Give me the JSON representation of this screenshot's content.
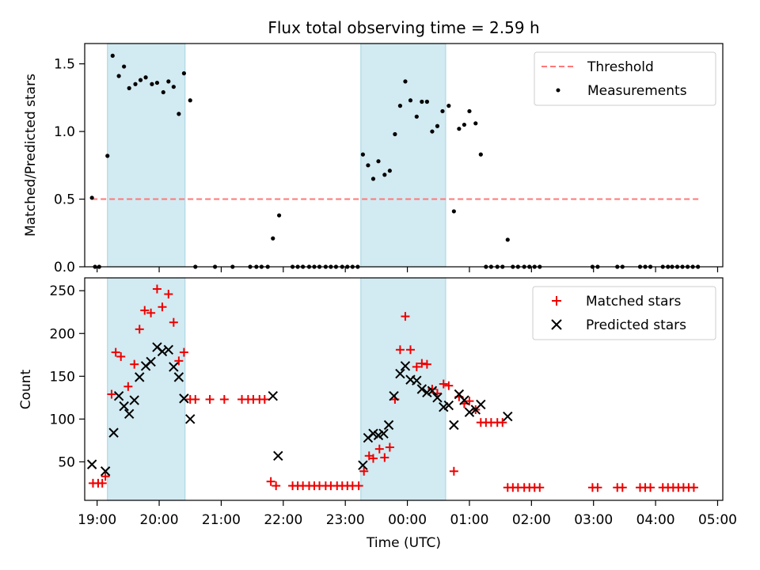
{
  "title": "Flux total observing time = 2.59 h",
  "colors": {
    "threshold": "#ff7777",
    "measurement": "#000000",
    "matched": "#ee0000",
    "predicted": "#000000",
    "shade": "#add8e6"
  },
  "chart_data": [
    {
      "type": "scatter",
      "ylabel": "Matched/Predicted stars",
      "xlabel": "",
      "ylim": [
        0,
        1.65
      ],
      "xlim": [
        "18:48",
        "05:05"
      ],
      "yticks": [
        "0.0",
        "0.5",
        "1.0",
        "1.5"
      ],
      "shaded_intervals": [
        [
          "19:10",
          "20:25"
        ],
        [
          "23:15",
          "00:37"
        ]
      ],
      "legend_position": "top-right",
      "legend": {
        "threshold": "Threshold",
        "measurements": "Measurements"
      },
      "threshold": {
        "value": 0.5,
        "x_range": [
          "18:55",
          "04:42"
        ],
        "style": "dashed"
      },
      "series": [
        {
          "name": "Measurements",
          "points": [
            [
              "18:55",
              0.51
            ],
            [
              "18:58",
              0.0
            ],
            [
              "19:02",
              0.0
            ],
            [
              "19:10",
              0.82
            ],
            [
              "19:15",
              1.56
            ],
            [
              "19:21",
              1.41
            ],
            [
              "19:26",
              1.48
            ],
            [
              "19:31",
              1.32
            ],
            [
              "19:37",
              1.35
            ],
            [
              "19:42",
              1.38
            ],
            [
              "19:47",
              1.4
            ],
            [
              "19:53",
              1.35
            ],
            [
              "19:58",
              1.36
            ],
            [
              "20:04",
              1.29
            ],
            [
              "20:09",
              1.37
            ],
            [
              "20:14",
              1.33
            ],
            [
              "20:19",
              1.13
            ],
            [
              "20:24",
              1.43
            ],
            [
              "20:30",
              1.23
            ],
            [
              "20:35",
              0.0
            ],
            [
              "20:54",
              0.0
            ],
            [
              "21:11",
              0.0
            ],
            [
              "21:28",
              0.0
            ],
            [
              "21:34",
              0.0
            ],
            [
              "21:39",
              0.0
            ],
            [
              "21:45",
              0.0
            ],
            [
              "21:50",
              0.21
            ],
            [
              "21:56",
              0.38
            ],
            [
              "22:09",
              0.0
            ],
            [
              "22:14",
              0.0
            ],
            [
              "22:19",
              0.0
            ],
            [
              "22:25",
              0.0
            ],
            [
              "22:30",
              0.0
            ],
            [
              "22:35",
              0.0
            ],
            [
              "22:41",
              0.0
            ],
            [
              "22:46",
              0.0
            ],
            [
              "22:51",
              0.0
            ],
            [
              "22:57",
              0.0
            ],
            [
              "23:02",
              0.0
            ],
            [
              "23:07",
              0.0
            ],
            [
              "23:12",
              0.0
            ],
            [
              "23:17",
              0.83
            ],
            [
              "23:22",
              0.75
            ],
            [
              "23:27",
              0.65
            ],
            [
              "23:32",
              0.78
            ],
            [
              "23:38",
              0.68
            ],
            [
              "23:43",
              0.71
            ],
            [
              "23:48",
              0.98
            ],
            [
              "23:53",
              1.19
            ],
            [
              "23:58",
              1.37
            ],
            [
              "00:03",
              1.23
            ],
            [
              "00:09",
              1.11
            ],
            [
              "00:14",
              1.22
            ],
            [
              "00:19",
              1.22
            ],
            [
              "00:24",
              1.0
            ],
            [
              "00:29",
              1.04
            ],
            [
              "00:34",
              1.15
            ],
            [
              "00:40",
              1.19
            ],
            [
              "00:45",
              0.41
            ],
            [
              "00:50",
              1.02
            ],
            [
              "00:55",
              1.05
            ],
            [
              "01:00",
              1.15
            ],
            [
              "01:06",
              1.06
            ],
            [
              "01:11",
              0.83
            ],
            [
              "01:16",
              0.0
            ],
            [
              "01:21",
              0.0
            ],
            [
              "01:27",
              0.0
            ],
            [
              "01:32",
              0.0
            ],
            [
              "01:37",
              0.2
            ],
            [
              "01:42",
              0.0
            ],
            [
              "01:47",
              0.0
            ],
            [
              "01:53",
              0.0
            ],
            [
              "01:58",
              0.0
            ],
            [
              "02:03",
              0.0
            ],
            [
              "02:08",
              0.0
            ],
            [
              "02:59",
              0.0
            ],
            [
              "03:04",
              0.0
            ],
            [
              "03:23",
              0.0
            ],
            [
              "03:28",
              0.0
            ],
            [
              "03:45",
              0.0
            ],
            [
              "03:50",
              0.0
            ],
            [
              "03:55",
              0.0
            ],
            [
              "04:07",
              0.0
            ],
            [
              "04:12",
              0.0
            ],
            [
              "04:16",
              0.0
            ],
            [
              "04:21",
              0.0
            ],
            [
              "04:26",
              0.0
            ],
            [
              "04:31",
              0.0
            ],
            [
              "04:36",
              0.0
            ],
            [
              "04:41",
              0.0
            ]
          ]
        }
      ]
    },
    {
      "type": "scatter",
      "ylabel": "Count",
      "xlabel": "Time (UTC)",
      "ylim": [
        5,
        265
      ],
      "xlim": [
        "18:48",
        "05:05"
      ],
      "yticks": [
        "50",
        "100",
        "150",
        "200",
        "250"
      ],
      "xticks": [
        "19:00",
        "20:00",
        "21:00",
        "22:00",
        "23:00",
        "00:00",
        "01:00",
        "02:00",
        "03:00",
        "04:00",
        "05:00"
      ],
      "shaded_intervals": [
        [
          "19:10",
          "20:25"
        ],
        [
          "23:15",
          "00:37"
        ]
      ],
      "legend_position": "top-right",
      "legend": {
        "matched": "Matched stars",
        "predicted": "Predicted stars"
      },
      "series": [
        {
          "name": "Matched stars",
          "marker": "plus",
          "points": [
            [
              "18:56",
              25
            ],
            [
              "19:01",
              25
            ],
            [
              "19:05",
              25
            ],
            [
              "19:08",
              33
            ],
            [
              "19:14",
              129
            ],
            [
              "19:18",
              178
            ],
            [
              "19:23",
              173
            ],
            [
              "19:30",
              138
            ],
            [
              "19:36",
              164
            ],
            [
              "19:41",
              205
            ],
            [
              "19:46",
              227
            ],
            [
              "19:52",
              224
            ],
            [
              "19:58",
              252
            ],
            [
              "20:03",
              231
            ],
            [
              "20:09",
              246
            ],
            [
              "20:14",
              213
            ],
            [
              "20:19",
              168
            ],
            [
              "20:24",
              178
            ],
            [
              "20:30",
              123
            ],
            [
              "20:35",
              123
            ],
            [
              "20:49",
              123
            ],
            [
              "21:03",
              123
            ],
            [
              "21:20",
              123
            ],
            [
              "21:26",
              123
            ],
            [
              "21:31",
              123
            ],
            [
              "21:37",
              123
            ],
            [
              "21:42",
              123
            ],
            [
              "21:48",
              27
            ],
            [
              "21:53",
              22
            ],
            [
              "22:09",
              22
            ],
            [
              "22:14",
              22
            ],
            [
              "22:19",
              22
            ],
            [
              "22:25",
              22
            ],
            [
              "22:30",
              22
            ],
            [
              "22:35",
              22
            ],
            [
              "22:41",
              22
            ],
            [
              "22:46",
              22
            ],
            [
              "22:52",
              22
            ],
            [
              "22:57",
              22
            ],
            [
              "23:02",
              22
            ],
            [
              "23:07",
              22
            ],
            [
              "23:13",
              22
            ],
            [
              "23:18",
              39
            ],
            [
              "23:23",
              57
            ],
            [
              "23:27",
              54
            ],
            [
              "23:33",
              65
            ],
            [
              "23:38",
              55
            ],
            [
              "23:43",
              67
            ],
            [
              "23:48",
              123
            ],
            [
              "23:53",
              181
            ],
            [
              "23:58",
              220
            ],
            [
              "00:03",
              181
            ],
            [
              "00:09",
              161
            ],
            [
              "00:14",
              165
            ],
            [
              "00:19",
              164
            ],
            [
              "00:24",
              135
            ],
            [
              "00:29",
              130
            ],
            [
              "00:35",
              141
            ],
            [
              "00:40",
              139
            ],
            [
              "00:45",
              39
            ],
            [
              "00:50",
              126
            ],
            [
              "00:55",
              118
            ],
            [
              "01:00",
              121
            ],
            [
              "01:06",
              111
            ],
            [
              "01:11",
              96
            ],
            [
              "01:16",
              96
            ],
            [
              "01:21",
              96
            ],
            [
              "01:27",
              96
            ],
            [
              "01:32",
              96
            ],
            [
              "01:37",
              20
            ],
            [
              "01:42",
              20
            ],
            [
              "01:47",
              20
            ],
            [
              "01:53",
              20
            ],
            [
              "01:58",
              20
            ],
            [
              "02:03",
              20
            ],
            [
              "02:08",
              20
            ],
            [
              "02:59",
              20
            ],
            [
              "03:04",
              20
            ],
            [
              "03:23",
              20
            ],
            [
              "03:28",
              20
            ],
            [
              "03:45",
              20
            ],
            [
              "03:50",
              20
            ],
            [
              "03:55",
              20
            ],
            [
              "04:07",
              20
            ],
            [
              "04:12",
              20
            ],
            [
              "04:17",
              20
            ],
            [
              "04:22",
              20
            ],
            [
              "04:27",
              20
            ],
            [
              "04:32",
              20
            ],
            [
              "04:37",
              20
            ]
          ]
        },
        {
          "name": "Predicted stars",
          "marker": "x",
          "points": [
            [
              "18:55",
              47
            ],
            [
              "19:08",
              39
            ],
            [
              "19:16",
              84
            ],
            [
              "19:21",
              127
            ],
            [
              "19:26",
              115
            ],
            [
              "19:31",
              106
            ],
            [
              "19:36",
              122
            ],
            [
              "19:41",
              149
            ],
            [
              "19:47",
              162
            ],
            [
              "19:52",
              167
            ],
            [
              "19:58",
              184
            ],
            [
              "20:03",
              179
            ],
            [
              "20:09",
              181
            ],
            [
              "20:14",
              161
            ],
            [
              "20:19",
              149
            ],
            [
              "20:24",
              124
            ],
            [
              "20:30",
              100
            ],
            [
              "21:50",
              127
            ],
            [
              "21:55",
              57
            ],
            [
              "23:17",
              46
            ],
            [
              "23:22",
              78
            ],
            [
              "23:27",
              83
            ],
            [
              "23:32",
              81
            ],
            [
              "23:37",
              83
            ],
            [
              "23:42",
              93
            ],
            [
              "23:47",
              127
            ],
            [
              "23:53",
              153
            ],
            [
              "23:58",
              162
            ],
            [
              "00:03",
              146
            ],
            [
              "00:09",
              145
            ],
            [
              "00:14",
              135
            ],
            [
              "00:19",
              131
            ],
            [
              "00:24",
              133
            ],
            [
              "00:29",
              125
            ],
            [
              "00:35",
              114
            ],
            [
              "00:40",
              116
            ],
            [
              "00:45",
              93
            ],
            [
              "00:50",
              129
            ],
            [
              "00:55",
              122
            ],
            [
              "01:00",
              108
            ],
            [
              "01:06",
              111
            ],
            [
              "01:11",
              117
            ],
            [
              "01:37",
              103
            ]
          ]
        }
      ]
    }
  ]
}
